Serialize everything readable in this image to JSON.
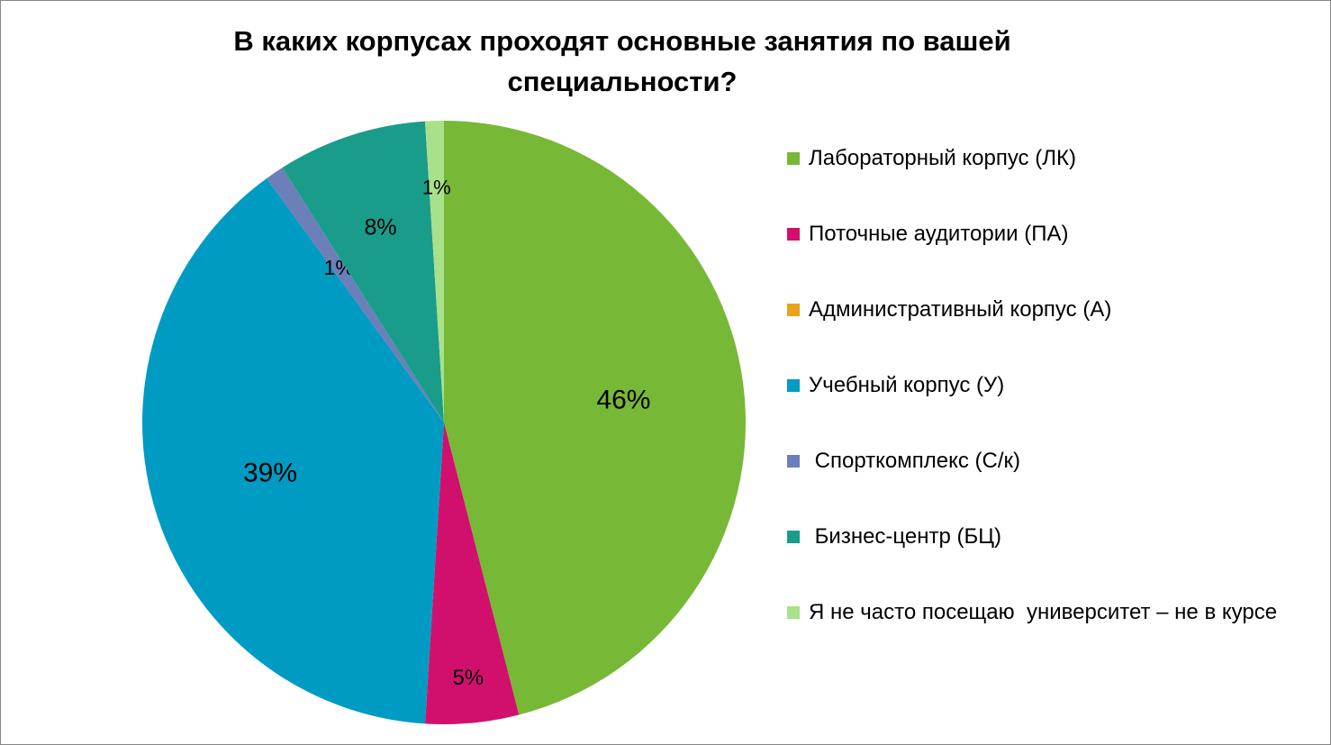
{
  "chart_data": {
    "type": "pie",
    "title": "В каких корпусах проходят основные занятия по вашей специальности?",
    "slices": [
      {
        "label": "Лабораторный корпус (ЛК)",
        "value": 46,
        "data_label": "46%",
        "color": "#77B837"
      },
      {
        "label": "Поточные аудитории (ПА)",
        "value": 5,
        "data_label": "5%",
        "color": "#D1106D"
      },
      {
        "label": "Административный корпус (А)",
        "value": 0,
        "data_label": "",
        "color": "#E8A31B"
      },
      {
        "label": "Учебный корпус (У)",
        "value": 39,
        "data_label": "39%",
        "color": "#009BC3"
      },
      {
        "label": " Спорткомплекс (С/к)",
        "value": 1,
        "data_label": "1%",
        "color": "#6C7FB9"
      },
      {
        "label": " Бизнес-центр (БЦ)",
        "value": 8,
        "data_label": "8%",
        "color": "#1A9C8A"
      },
      {
        "label": "Я не часто посещаю  университет – не в курсе",
        "value": 1,
        "data_label": "1%",
        "color": "#A9E08A"
      }
    ],
    "start_angle_deg": 0,
    "direction": "clockwise",
    "legend_position": "right"
  }
}
